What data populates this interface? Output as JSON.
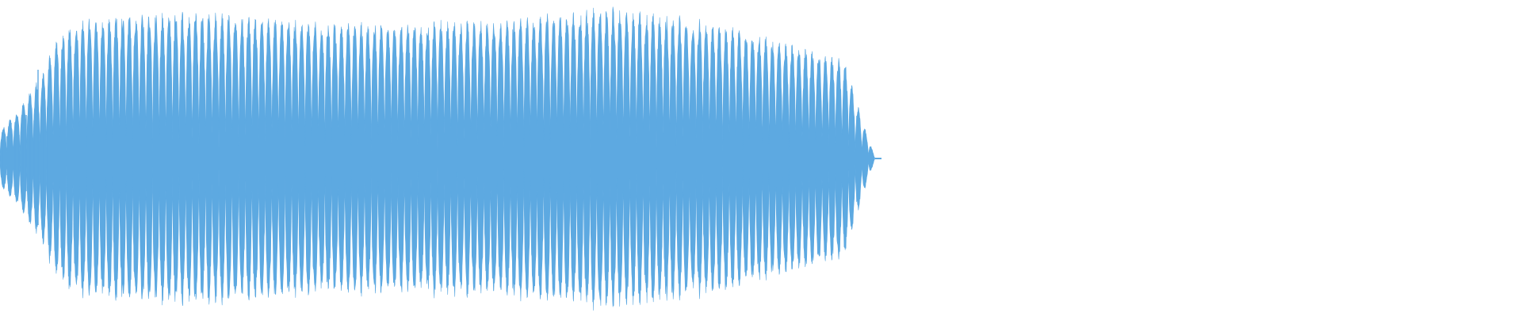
{
  "waveform": {
    "color": "#5DA9E1",
    "background": "#FFFFFF",
    "oscillation_count": 66,
    "envelope": [
      {
        "t": 0.0,
        "a": 0.18
      },
      {
        "t": 0.02,
        "a": 0.3
      },
      {
        "t": 0.034,
        "a": 0.42
      },
      {
        "t": 0.05,
        "a": 0.55
      },
      {
        "t": 0.065,
        "a": 0.78
      },
      {
        "t": 0.09,
        "a": 0.88
      },
      {
        "t": 0.15,
        "a": 0.93
      },
      {
        "t": 0.25,
        "a": 0.92
      },
      {
        "t": 0.4,
        "a": 0.86
      },
      {
        "t": 0.55,
        "a": 0.88
      },
      {
        "t": 0.7,
        "a": 0.96
      },
      {
        "t": 0.8,
        "a": 0.88
      },
      {
        "t": 0.86,
        "a": 0.8
      },
      {
        "t": 0.92,
        "a": 0.7
      },
      {
        "t": 0.965,
        "a": 0.62
      },
      {
        "t": 0.985,
        "a": 0.25
      },
      {
        "t": 1.0,
        "a": 0.0
      }
    ],
    "extent_fraction": 0.575
  }
}
